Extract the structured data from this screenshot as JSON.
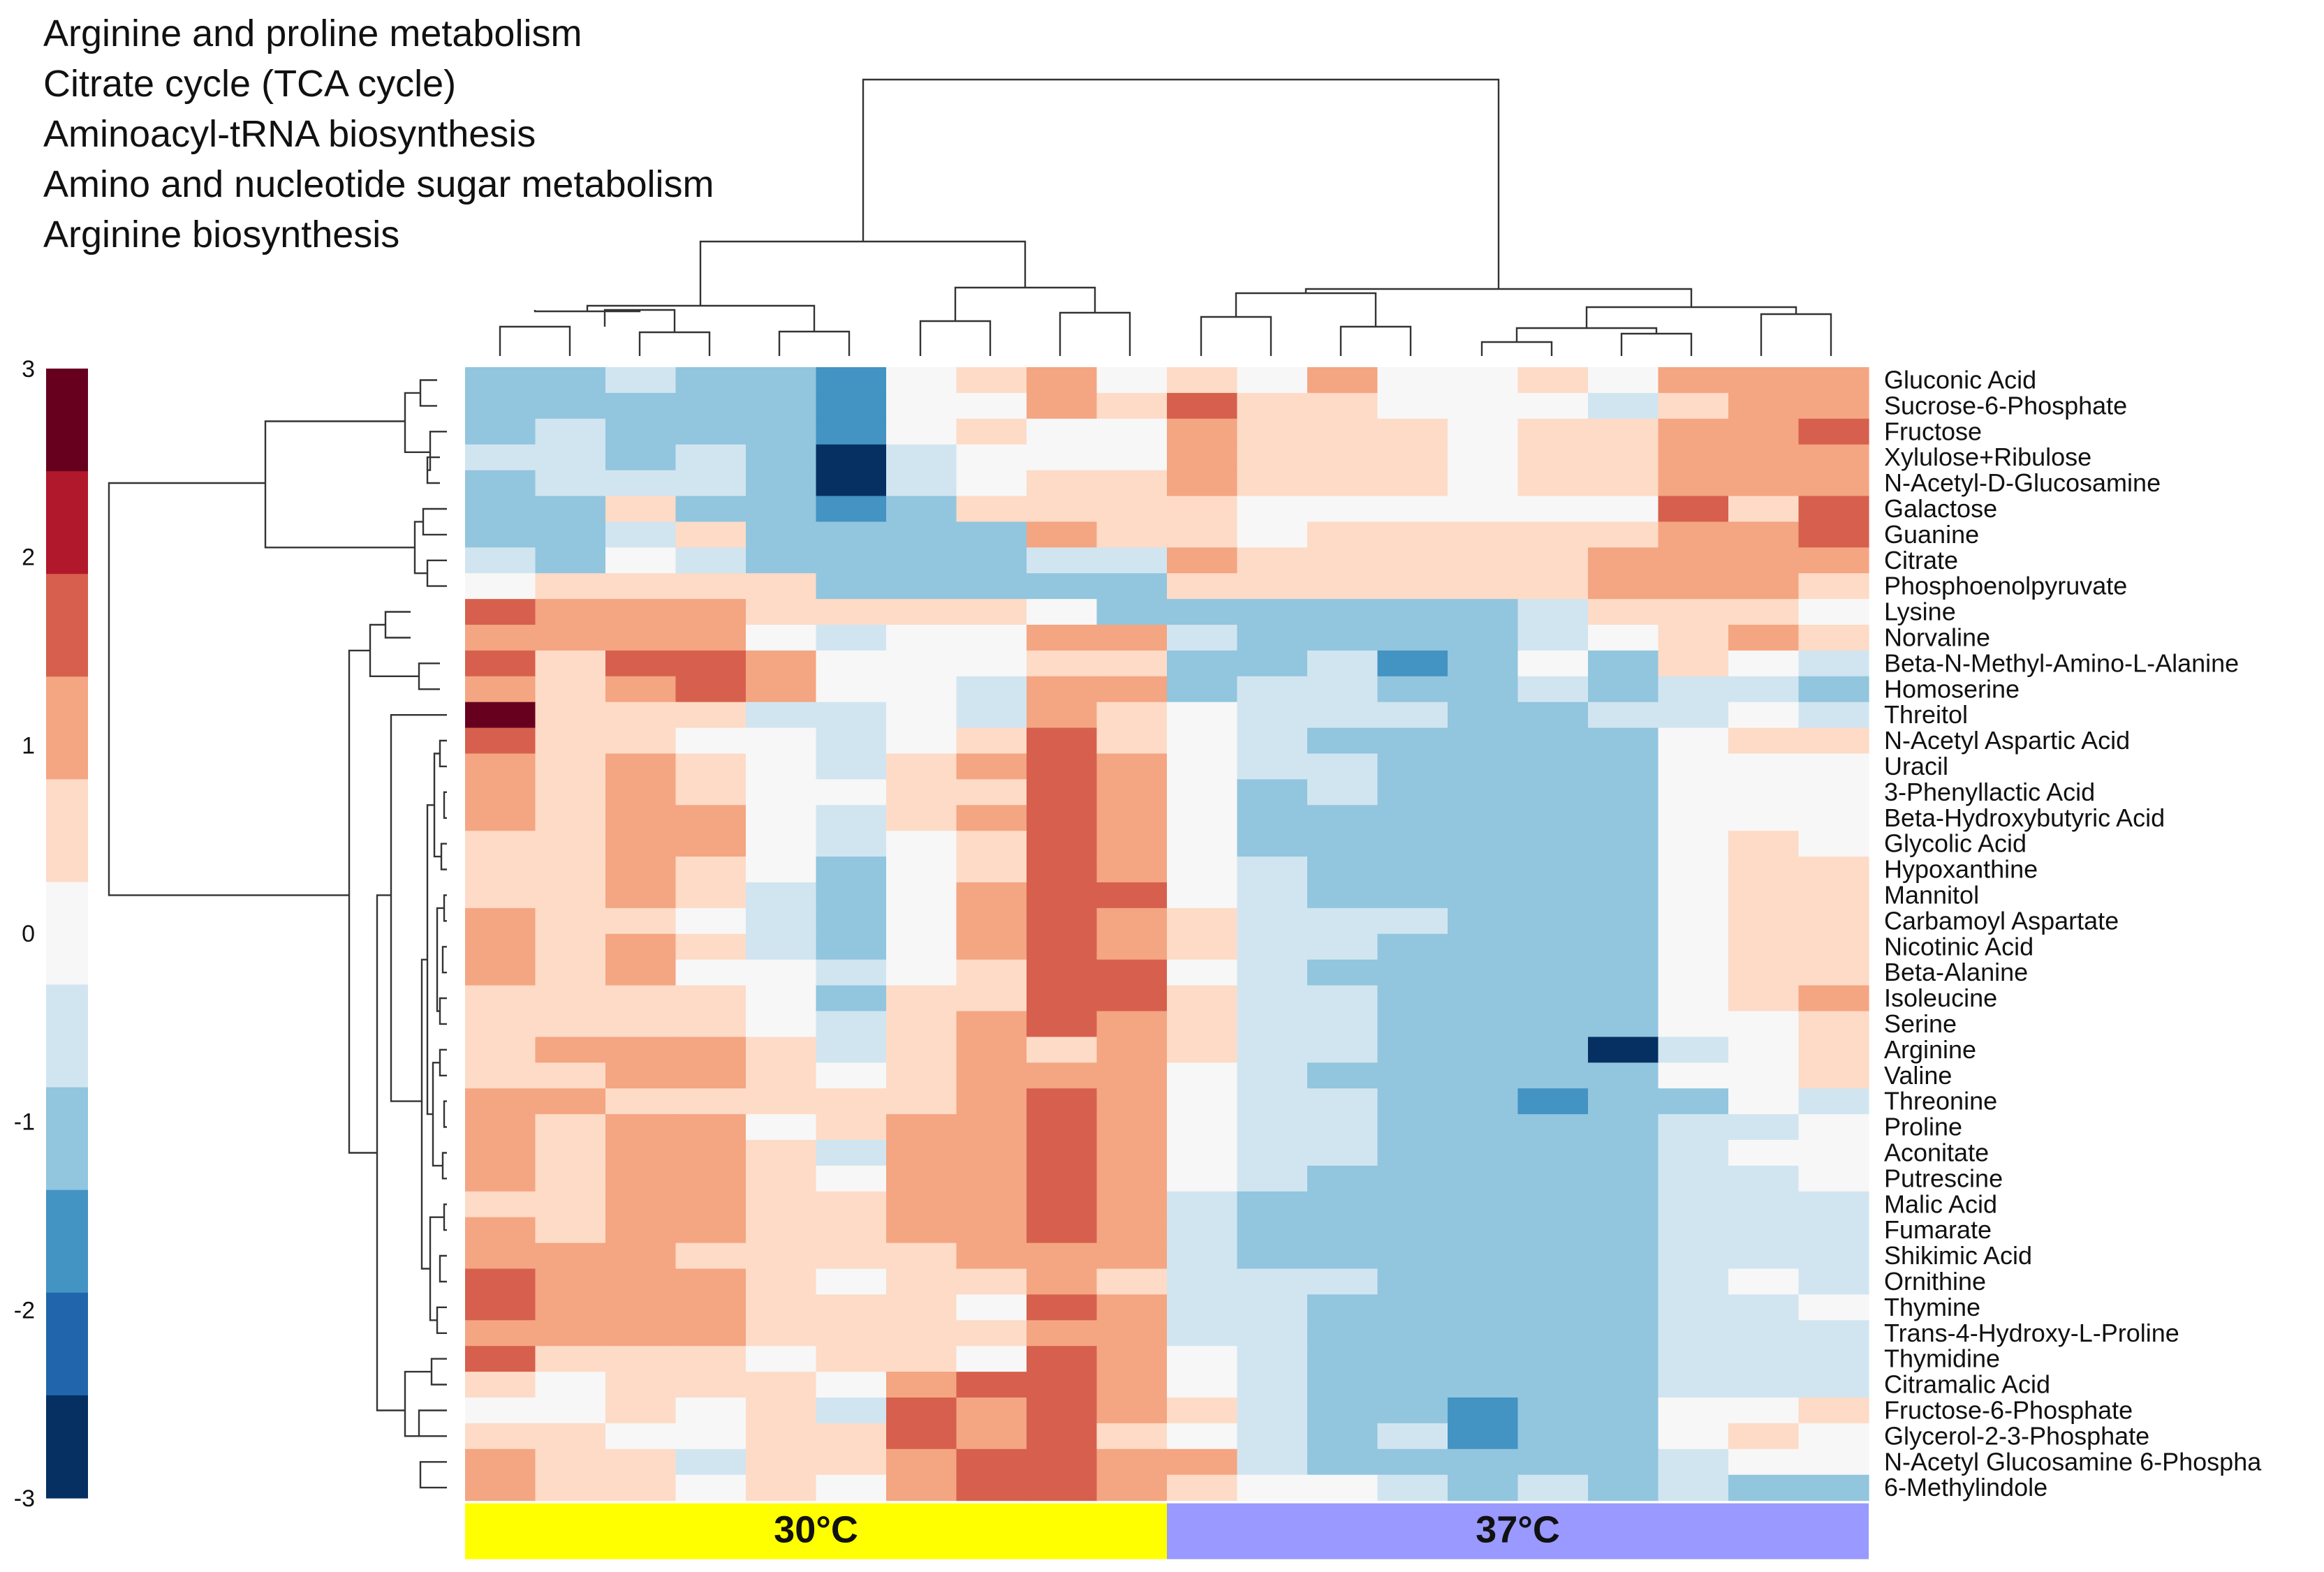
{
  "pathways": [
    "Arginine and proline metabolism",
    "Citrate cycle (TCA cycle)",
    "Aminoacyl-tRNA biosynthesis",
    "Amino and nucleotide sugar metabolism",
    "Arginine biosynthesis"
  ],
  "chart_data": {
    "type": "heatmap",
    "title": "",
    "xlabel": "",
    "ylabel": "",
    "colorbar": {
      "range": [
        -3,
        3
      ],
      "ticks": [
        "3",
        "2",
        "1",
        "0",
        "-1",
        "-2",
        "-3"
      ],
      "colors": [
        "#053061",
        "#2166ac",
        "#4393c3",
        "#92c5de",
        "#d1e5f0",
        "#f7f7f7",
        "#fddbc7",
        "#f4a582",
        "#d6604d",
        "#b2182b",
        "#67001f"
      ]
    },
    "groups": [
      {
        "label": "30°C",
        "color": "#ffff00",
        "columns": 10
      },
      {
        "label": "37°C",
        "color": "#9999ff",
        "columns": 10
      }
    ],
    "rows": [
      {
        "name": "Gluconic Acid",
        "values": [
          -1,
          -1,
          -0.5,
          -1,
          -1,
          -2,
          0,
          0.5,
          1,
          0,
          0.5,
          0,
          1,
          0,
          0,
          0.5,
          0,
          1,
          1,
          1
        ]
      },
      {
        "name": "Sucrose-6-Phosphate",
        "values": [
          -1,
          -1,
          -1,
          -1,
          -1,
          -2,
          0,
          0,
          1,
          0.5,
          1.5,
          0.5,
          0.5,
          0,
          0,
          0,
          -0.5,
          0.5,
          1,
          1
        ]
      },
      {
        "name": "Fructose",
        "values": [
          -1,
          -0.5,
          -1,
          -1,
          -1,
          -2,
          0,
          0.5,
          0,
          0,
          1,
          0.5,
          0.5,
          0.5,
          0,
          0.5,
          0.5,
          1,
          1,
          1.5
        ]
      },
      {
        "name": "Xylulose+Ribulose",
        "values": [
          -0.5,
          -0.5,
          -1,
          -0.5,
          -1.5,
          -3,
          -0.5,
          0,
          0,
          0,
          1,
          0.5,
          0.5,
          0.5,
          0,
          0.5,
          0.5,
          1,
          1,
          1
        ]
      },
      {
        "name": "N-Acetyl-D-Glucosamine",
        "values": [
          -1,
          -0.5,
          -0.5,
          -0.5,
          -1,
          -3,
          -0.5,
          0,
          0.5,
          0.5,
          1,
          0.5,
          0.5,
          0.5,
          0,
          0.5,
          0.5,
          1,
          1,
          1
        ]
      },
      {
        "name": "Galactose",
        "values": [
          -1,
          -1,
          0.5,
          -1,
          -1.5,
          -2,
          -1,
          0.5,
          0.5,
          0.5,
          0.5,
          0,
          0,
          0,
          0,
          0,
          0,
          1.5,
          0.5,
          1.5
        ]
      },
      {
        "name": "Guanine",
        "values": [
          -1.5,
          -1,
          -0.5,
          0.5,
          -1,
          -1.5,
          -1.5,
          -1.5,
          1,
          0.5,
          0.5,
          0,
          0.5,
          0.5,
          0.5,
          0.5,
          0.5,
          1,
          1,
          1.5
        ]
      },
      {
        "name": "Citrate",
        "values": [
          -0.5,
          -1,
          0,
          -0.5,
          -1,
          -1.5,
          -1.5,
          -1,
          -0.5,
          -0.5,
          1,
          0.5,
          0.5,
          0.5,
          0.5,
          0.5,
          1,
          1,
          1,
          1
        ]
      },
      {
        "name": "Phosphoenolpyruvate",
        "values": [
          0,
          0.5,
          0.5,
          0.5,
          0.5,
          -1.5,
          -1.5,
          -1,
          -1.5,
          -1.5,
          0.5,
          0.5,
          0.5,
          0.5,
          0.5,
          0.5,
          1,
          1,
          1,
          0.5
        ]
      },
      {
        "name": "Lysine",
        "values": [
          1.5,
          1,
          1,
          1,
          0.5,
          0.5,
          0.5,
          0.5,
          0,
          -1,
          -1.5,
          -1.5,
          -1,
          -1,
          -1,
          -0.5,
          0.5,
          0.5,
          0.5,
          0
        ]
      },
      {
        "name": "Norvaline",
        "values": [
          1,
          1,
          1,
          1,
          0,
          -0.5,
          0,
          0,
          1,
          1,
          -0.5,
          -1.5,
          -1,
          -1,
          -1,
          -0.5,
          0,
          0.5,
          1,
          0.5
        ]
      },
      {
        "name": "Beta-N-Methyl-Amino-L-Alanine",
        "values": [
          1.5,
          0.5,
          1.5,
          1.5,
          1,
          0,
          0,
          0,
          0.5,
          0.5,
          -1.5,
          -1,
          -0.5,
          -2,
          -1,
          0,
          -1,
          0.5,
          0,
          -0.5
        ]
      },
      {
        "name": "Homoserine",
        "values": [
          1,
          0.5,
          1,
          1.5,
          1,
          0,
          0,
          -0.5,
          1,
          1,
          -1,
          -0.5,
          -0.5,
          -1,
          -1,
          -0.5,
          -1,
          -0.5,
          -0.5,
          -1
        ]
      },
      {
        "name": "Threitol",
        "values": [
          3,
          0.5,
          0.5,
          0.5,
          -0.5,
          -0.5,
          0,
          -0.5,
          1,
          0.5,
          0,
          -0.5,
          -0.5,
          -0.5,
          -1,
          -1,
          -0.5,
          -0.5,
          0,
          -0.5
        ]
      },
      {
        "name": "N-Acetyl Aspartic Acid",
        "values": [
          1.5,
          0.5,
          0.5,
          0,
          0,
          -0.5,
          0,
          0.5,
          1.5,
          0.5,
          0,
          -0.5,
          -1,
          -1.5,
          -1.5,
          -1,
          -1.5,
          0,
          0.5,
          0.5
        ]
      },
      {
        "name": "Uracil",
        "values": [
          1,
          0.5,
          1,
          0.5,
          0,
          -0.5,
          0.5,
          1,
          2,
          1,
          0,
          -0.5,
          -0.5,
          -1.5,
          -1.5,
          -1.5,
          -1.5,
          0,
          0,
          0
        ]
      },
      {
        "name": "3-Phenyllactic Acid",
        "values": [
          1,
          0.5,
          1,
          0.5,
          0,
          0,
          0.5,
          0.5,
          1.5,
          1,
          0,
          -1,
          -0.5,
          -1,
          -1.5,
          -1.5,
          -1.5,
          0,
          0,
          0
        ]
      },
      {
        "name": "Beta-Hydroxybutyric Acid",
        "values": [
          1,
          0.5,
          1,
          1,
          0,
          -0.5,
          0.5,
          1,
          1.5,
          1,
          0,
          -1,
          -1,
          -1.5,
          -1.5,
          -1,
          -1,
          0,
          0,
          0
        ]
      },
      {
        "name": "Glycolic Acid",
        "values": [
          0.5,
          0.5,
          1,
          1,
          0,
          -0.5,
          0,
          0.5,
          2,
          1,
          0,
          -1,
          -1,
          -1.5,
          -1.5,
          -1,
          -1,
          0,
          0.5,
          0
        ]
      },
      {
        "name": "Hypoxanthine",
        "values": [
          0.5,
          0.5,
          1,
          0.5,
          0,
          -1,
          0,
          0.5,
          2,
          1,
          0,
          -0.5,
          -1,
          -1,
          -1.5,
          -1,
          -1,
          0,
          0.5,
          0.5
        ]
      },
      {
        "name": "Mannitol",
        "values": [
          0.5,
          0.5,
          1,
          0.5,
          -0.5,
          -1.5,
          0,
          1,
          1.5,
          1.5,
          0,
          -0.5,
          -1,
          -1,
          -1.5,
          -1,
          -1,
          0,
          0.5,
          0.5
        ]
      },
      {
        "name": "Carbamoyl Aspartate",
        "values": [
          1,
          0.5,
          0.5,
          0,
          -0.5,
          -1,
          0,
          1,
          2,
          1,
          0.5,
          -0.5,
          -0.5,
          -0.5,
          -1.5,
          -1.5,
          -1,
          0,
          0.5,
          0.5
        ]
      },
      {
        "name": "Nicotinic Acid",
        "values": [
          1,
          0.5,
          1,
          0.5,
          -0.5,
          -1,
          0,
          1,
          1.5,
          1,
          0.5,
          -0.5,
          -0.5,
          -1,
          -1.5,
          -1,
          -1.5,
          0,
          0.5,
          0.5
        ]
      },
      {
        "name": "Beta-Alanine",
        "values": [
          1,
          0.5,
          1,
          0,
          0,
          -0.5,
          0,
          0.5,
          2,
          1.5,
          0,
          -0.5,
          -1,
          -1,
          -1.5,
          -1.5,
          -1.5,
          0,
          0.5,
          0.5
        ]
      },
      {
        "name": "Isoleucine",
        "values": [
          0.5,
          0.5,
          0.5,
          0.5,
          0,
          -1,
          0.5,
          0.5,
          1.5,
          1.5,
          0.5,
          -0.5,
          -0.5,
          -1,
          -1.5,
          -1.5,
          -1.5,
          0,
          0.5,
          1
        ]
      },
      {
        "name": "Serine",
        "values": [
          0.5,
          0.5,
          0.5,
          0.5,
          0,
          -0.5,
          0.5,
          1,
          1.5,
          1,
          0.5,
          -0.5,
          -0.5,
          -1,
          -1.5,
          -1.5,
          -1.5,
          0,
          0,
          0.5
        ]
      },
      {
        "name": "Arginine",
        "values": [
          0.5,
          1,
          1,
          1,
          0.5,
          -0.5,
          0.5,
          1,
          0.5,
          1,
          0.5,
          -0.5,
          -0.5,
          -1,
          -1.5,
          -1,
          -3,
          -0.5,
          0,
          0.5
        ]
      },
      {
        "name": "Valine",
        "values": [
          0.5,
          0.5,
          1,
          1,
          0.5,
          0,
          0.5,
          1,
          1,
          1,
          0,
          -0.5,
          -1,
          -1,
          -1.5,
          -1.5,
          -1.5,
          0,
          0,
          0.5
        ]
      },
      {
        "name": "Threonine",
        "values": [
          1,
          1,
          0.5,
          0.5,
          0.5,
          0.5,
          0.5,
          1,
          1.5,
          1,
          0,
          -0.5,
          -0.5,
          -1,
          -1,
          -2,
          -1.5,
          -1,
          0,
          -0.5
        ]
      },
      {
        "name": "Proline",
        "values": [
          1,
          0.5,
          1,
          1,
          0,
          0.5,
          1,
          1,
          1.5,
          1,
          0,
          -0.5,
          -0.5,
          -1,
          -1.5,
          -1,
          -1.5,
          -0.5,
          -0.5,
          0
        ]
      },
      {
        "name": "Aconitate",
        "values": [
          1,
          0.5,
          1,
          1,
          0.5,
          -0.5,
          1,
          1,
          1.5,
          1,
          0,
          -0.5,
          -0.5,
          -1,
          -1.5,
          -1,
          -1.5,
          -0.5,
          0,
          0
        ]
      },
      {
        "name": "Putrescine",
        "values": [
          1,
          0.5,
          1,
          1,
          0.5,
          0,
          1,
          1,
          1.5,
          1,
          0,
          -0.5,
          -1,
          -1,
          -1.5,
          -1,
          -1.5,
          -0.5,
          -0.5,
          0
        ]
      },
      {
        "name": "Malic Acid",
        "values": [
          0.5,
          0.5,
          1,
          1,
          0.5,
          0.5,
          1,
          1,
          1.5,
          1,
          -0.5,
          -1,
          -1,
          -1,
          -1.5,
          -1,
          -1,
          -0.5,
          -0.5,
          -0.5
        ]
      },
      {
        "name": "Fumarate",
        "values": [
          1,
          0.5,
          1,
          1,
          0.5,
          0.5,
          1,
          1,
          1.5,
          1,
          -0.5,
          -1,
          -1,
          -1,
          -1.5,
          -1,
          -1,
          -0.5,
          -0.5,
          -0.5
        ]
      },
      {
        "name": "Shikimic Acid",
        "values": [
          1,
          1,
          1,
          0.5,
          0.5,
          0.5,
          0.5,
          1,
          1,
          1,
          -0.5,
          -1,
          -1,
          -1,
          -1,
          -1,
          -1,
          -0.5,
          -0.5,
          -0.5
        ]
      },
      {
        "name": "Ornithine",
        "values": [
          1.5,
          1,
          1,
          1,
          0.5,
          0,
          0.5,
          0.5,
          1,
          0.5,
          -0.5,
          -0.5,
          -0.5,
          -1,
          -1.5,
          -1,
          -1,
          -0.5,
          0,
          -0.5
        ]
      },
      {
        "name": "Thymine",
        "values": [
          1.5,
          1,
          1,
          1,
          0.5,
          0.5,
          0.5,
          0,
          1.5,
          1,
          -0.5,
          -0.5,
          -1,
          -1,
          -1.5,
          -1,
          -1,
          -0.5,
          -0.5,
          0
        ]
      },
      {
        "name": "Trans-4-Hydroxy-L-Proline",
        "values": [
          1,
          1,
          1,
          1,
          0.5,
          0.5,
          0.5,
          0.5,
          1,
          1,
          -0.5,
          -0.5,
          -1,
          -1,
          -1,
          -1.5,
          -1.5,
          -0.5,
          -0.5,
          -0.5
        ]
      },
      {
        "name": "Thymidine",
        "values": [
          1.5,
          0.5,
          0.5,
          0.5,
          0,
          0.5,
          0.5,
          0,
          2,
          1,
          0,
          -0.5,
          -1,
          -1,
          -1,
          -1.5,
          -1,
          -0.5,
          -0.5,
          -0.5
        ]
      },
      {
        "name": "Citramalic Acid",
        "values": [
          0.5,
          0,
          0.5,
          0.5,
          0.5,
          0,
          1,
          1.5,
          2,
          1,
          0,
          -0.5,
          -1,
          -1,
          -1,
          -1,
          -1.5,
          -0.5,
          -0.5,
          -0.5
        ]
      },
      {
        "name": "Fructose-6-Phosphate",
        "values": [
          0,
          0,
          0.5,
          0,
          0.5,
          -0.5,
          1.5,
          1,
          2,
          1,
          0.5,
          -0.5,
          -1,
          -1,
          -2,
          -1,
          -1,
          0,
          0,
          0.5
        ]
      },
      {
        "name": "Glycerol-2-3-Phosphate",
        "values": [
          0.5,
          0.5,
          0,
          0,
          0.5,
          0.5,
          1.5,
          1,
          1.5,
          0.5,
          0,
          -0.5,
          -1,
          -0.5,
          -2,
          -1,
          -1.5,
          0,
          0.5,
          0
        ]
      },
      {
        "name": "N-Acetyl Glucosamine 6-Phospha",
        "values": [
          1,
          0.5,
          0.5,
          -0.5,
          0.5,
          0.5,
          1,
          1.5,
          1.5,
          1,
          1,
          -0.5,
          -1,
          -1,
          -1.5,
          -1,
          -1.5,
          -0.5,
          0,
          0
        ]
      },
      {
        "name": "6-Methylindole",
        "values": [
          1,
          0.5,
          0.5,
          0,
          0.5,
          0,
          1,
          1.5,
          2,
          1,
          0.5,
          0,
          0,
          -0.5,
          -1.5,
          -0.5,
          -1.5,
          -0.5,
          -1,
          -1
        ]
      }
    ]
  }
}
